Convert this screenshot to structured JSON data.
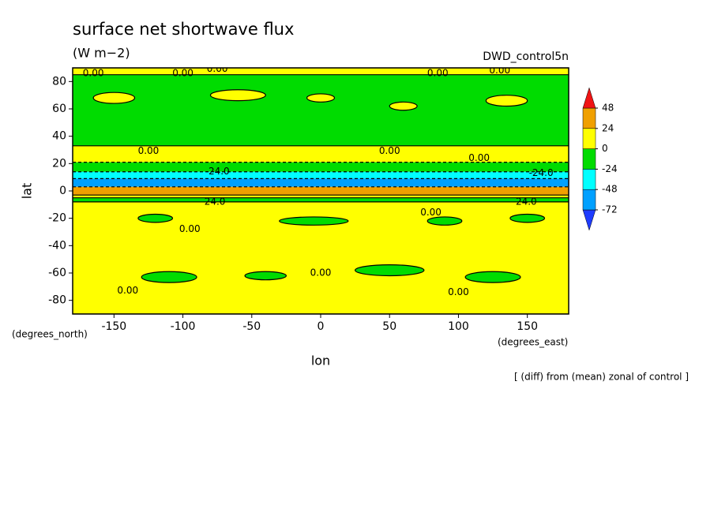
{
  "chart_data": {
    "type": "contour",
    "title": "surface net shortwave flux",
    "subtitle": "(W m−2)",
    "experiment": "DWD_control5n",
    "note": "[ (diff) from (mean) zonal of control ]",
    "xlabel": "lon",
    "ylabel": "lat",
    "xunit": "(degrees_east)",
    "yunit": "(degrees_north)",
    "xlim": [
      -180,
      180
    ],
    "ylim": [
      -90,
      90
    ],
    "xticks": [
      -150,
      -100,
      -50,
      0,
      50,
      100,
      150
    ],
    "yticks": [
      -80,
      -60,
      -40,
      -20,
      0,
      20,
      40,
      60,
      80
    ],
    "levels": [
      -72,
      -48,
      -24,
      0,
      24,
      48
    ],
    "colors": [
      "#1e3cff",
      "#00a0ff",
      "#00ffff",
      "#00dc00",
      "#ffff00",
      "#f0a000",
      "#f01414"
    ],
    "bands": {
      "lat_edges": [
        90,
        85,
        33,
        21,
        14,
        9,
        3,
        -3,
        -5,
        -8,
        -90
      ],
      "values": [
        12,
        -12,
        12,
        -12,
        -36,
        -60,
        36,
        12,
        -12,
        12
      ]
    },
    "patches": [
      {
        "lon": -150,
        "lat": 68,
        "dlon": 30,
        "dlat": 8,
        "value": 12
      },
      {
        "lon": -60,
        "lat": 70,
        "dlon": 40,
        "dlat": 8,
        "value": 12
      },
      {
        "lon": 0,
        "lat": 68,
        "dlon": 20,
        "dlat": 6,
        "value": 12
      },
      {
        "lon": 60,
        "lat": 62,
        "dlon": 20,
        "dlat": 6,
        "value": 12
      },
      {
        "lon": 135,
        "lat": 66,
        "dlon": 30,
        "dlat": 8,
        "value": 12
      },
      {
        "lon": -120,
        "lat": -20,
        "dlon": 25,
        "dlat": 6,
        "value": -12
      },
      {
        "lon": -5,
        "lat": -22,
        "dlon": 50,
        "dlat": 6,
        "value": -12
      },
      {
        "lon": 90,
        "lat": -22,
        "dlon": 25,
        "dlat": 6,
        "value": -12
      },
      {
        "lon": 150,
        "lat": -20,
        "dlon": 25,
        "dlat": 6,
        "value": -12
      },
      {
        "lon": -110,
        "lat": -63,
        "dlon": 40,
        "dlat": 8,
        "value": -12
      },
      {
        "lon": -40,
        "lat": -62,
        "dlon": 30,
        "dlat": 6,
        "value": -12
      },
      {
        "lon": 50,
        "lat": -58,
        "dlon": 50,
        "dlat": 8,
        "value": -12
      },
      {
        "lon": 125,
        "lat": -63,
        "dlon": 40,
        "dlat": 8,
        "value": -12
      }
    ],
    "contour_labels": [
      {
        "text": "0.00",
        "lon": -165,
        "lat": 86
      },
      {
        "text": "0.00",
        "lon": -100,
        "lat": 86
      },
      {
        "text": "0.00",
        "lon": -75,
        "lat": 89
      },
      {
        "text": "0.00",
        "lon": 85,
        "lat": 86
      },
      {
        "text": "0.00",
        "lon": 130,
        "lat": 88
      },
      {
        "text": "0.00",
        "lon": -125,
        "lat": 29
      },
      {
        "text": "0.00",
        "lon": 50,
        "lat": 29
      },
      {
        "text": "0.00",
        "lon": 115,
        "lat": 24
      },
      {
        "text": "0.00",
        "lon": -95,
        "lat": -28
      },
      {
        "text": "0.00",
        "lon": 80,
        "lat": -16
      },
      {
        "text": "0.00",
        "lon": 0,
        "lat": -60
      },
      {
        "text": "0.00",
        "lon": -140,
        "lat": -73
      },
      {
        "text": "0.00",
        "lon": 100,
        "lat": -74
      },
      {
        "text": "-24.0",
        "lon": -75,
        "lat": 14
      },
      {
        "text": "-24.0",
        "lon": 160,
        "lat": 13
      },
      {
        "text": "-24.0",
        "lon": -78,
        "lat": -8
      },
      {
        "text": "-24.0",
        "lon": 148,
        "lat": -8
      }
    ]
  }
}
